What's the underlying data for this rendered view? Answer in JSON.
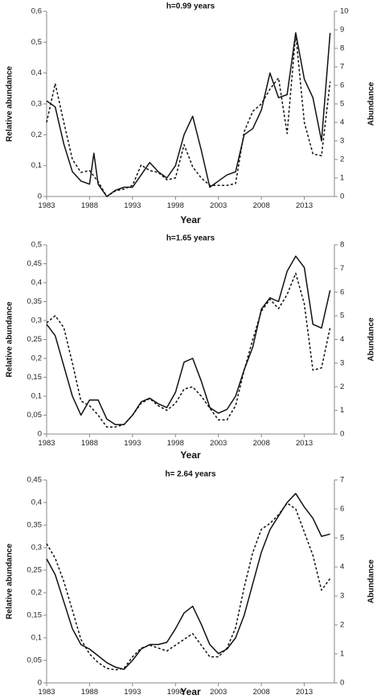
{
  "chart_data": [
    {
      "type": "line",
      "title": "h=0.99 years",
      "xlabel": "Year",
      "ylabel": "Relative abundance",
      "y2label": "Abundance",
      "xticks": [
        "1983",
        "1988",
        "1993",
        "1998",
        "2003",
        "2008",
        "2013"
      ],
      "yticks": [
        "0",
        "0,1",
        "0,2",
        "0,3",
        "0,4",
        "0,5",
        "0,6"
      ],
      "y2ticks": [
        "0",
        "1",
        "2",
        "3",
        "4",
        "5",
        "6",
        "7",
        "8",
        "9",
        "10"
      ],
      "xlim": [
        1983,
        2016.5
      ],
      "ylim": [
        0,
        0.6
      ],
      "y2lim": [
        0,
        10
      ],
      "series": [
        {
          "axis": "left",
          "style": "solid",
          "x": [
            1983,
            1984,
            1985,
            1986,
            1987,
            1988,
            1988.5,
            1989,
            1990,
            1991,
            1992,
            1993,
            1994,
            1995,
            1996,
            1997,
            1998,
            1999,
            2000,
            2001,
            2002,
            2003,
            2004,
            2005,
            2006,
            2007,
            2008,
            2009,
            2010,
            2011,
            2012,
            2013,
            2014,
            2015,
            2016
          ],
          "values": [
            0.31,
            0.29,
            0.17,
            0.08,
            0.05,
            0.04,
            0.14,
            0.04,
            0.0,
            0.02,
            0.03,
            0.03,
            0.07,
            0.11,
            0.08,
            0.06,
            0.1,
            0.2,
            0.26,
            0.15,
            0.03,
            0.05,
            0.07,
            0.08,
            0.2,
            0.22,
            0.28,
            0.4,
            0.32,
            0.33,
            0.53,
            0.38,
            0.32,
            0.18,
            0.53
          ]
        },
        {
          "axis": "right",
          "style": "dashed",
          "x": [
            1983,
            1984,
            1985,
            1986,
            1987,
            1988,
            1989,
            1990,
            1991,
            1992,
            1993,
            1994,
            1995,
            1996,
            1997,
            1998,
            1999,
            2000,
            2001,
            2002,
            2003,
            2004,
            2005,
            2006,
            2007,
            2008,
            2009,
            2010,
            2011,
            2012,
            2013,
            2014,
            2015,
            2016
          ],
          "values": [
            4.0,
            6.1,
            4.0,
            2.0,
            1.3,
            1.4,
            0.8,
            0.0,
            0.3,
            0.4,
            0.6,
            1.7,
            1.4,
            1.3,
            0.9,
            1.0,
            2.8,
            1.6,
            1.0,
            0.6,
            0.6,
            0.6,
            0.7,
            3.5,
            4.6,
            5.0,
            5.8,
            6.4,
            3.4,
            8.8,
            4.0,
            2.3,
            2.2,
            6.2
          ]
        }
      ]
    },
    {
      "type": "line",
      "title": "h=1.65 years",
      "xlabel": "Year",
      "ylabel": "Relative abundance",
      "y2label": "Abundance",
      "xticks": [
        "1983",
        "1988",
        "1993",
        "1998",
        "2003",
        "2008",
        "2013"
      ],
      "yticks": [
        "0",
        "0,05",
        "0,1",
        "0,15",
        "0,2",
        "0,25",
        "0,3",
        "0,35",
        "0,4",
        "0,45",
        "0,5"
      ],
      "y2ticks": [
        "0",
        "1",
        "2",
        "3",
        "4",
        "5",
        "6",
        "7",
        "8"
      ],
      "xlim": [
        1983,
        2016.5
      ],
      "ylim": [
        0,
        0.5
      ],
      "y2lim": [
        0,
        8
      ],
      "series": [
        {
          "axis": "left",
          "style": "solid",
          "x": [
            1983,
            1984,
            1985,
            1986,
            1987,
            1988,
            1989,
            1990,
            1991,
            1992,
            1993,
            1994,
            1995,
            1996,
            1997,
            1998,
            1999,
            2000,
            2001,
            2002,
            2003,
            2004,
            2005,
            2006,
            2007,
            2008,
            2009,
            2010,
            2011,
            2012,
            2013,
            2014,
            2015,
            2016
          ],
          "values": [
            0.29,
            0.26,
            0.18,
            0.1,
            0.05,
            0.09,
            0.09,
            0.04,
            0.025,
            0.025,
            0.05,
            0.085,
            0.095,
            0.08,
            0.07,
            0.11,
            0.19,
            0.2,
            0.14,
            0.07,
            0.055,
            0.065,
            0.1,
            0.17,
            0.23,
            0.33,
            0.36,
            0.35,
            0.43,
            0.47,
            0.44,
            0.29,
            0.28,
            0.38
          ]
        },
        {
          "axis": "right",
          "style": "dashed",
          "x": [
            1983,
            1984,
            1985,
            1986,
            1987,
            1988,
            1989,
            1990,
            1991,
            1992,
            1993,
            1994,
            1995,
            1996,
            1997,
            1998,
            1999,
            2000,
            2001,
            2002,
            2003,
            2004,
            2005,
            2006,
            2007,
            2008,
            2009,
            2010,
            2011,
            2012,
            2013,
            2014,
            2015,
            2016
          ],
          "values": [
            4.7,
            5.0,
            4.5,
            3.0,
            1.4,
            1.2,
            0.8,
            0.3,
            0.3,
            0.4,
            0.8,
            1.3,
            1.5,
            1.2,
            1.0,
            1.3,
            1.9,
            2.0,
            1.6,
            1.1,
            0.6,
            0.6,
            1.2,
            2.7,
            4.0,
            5.2,
            5.7,
            5.3,
            5.9,
            6.8,
            5.5,
            2.7,
            2.8,
            4.5
          ]
        }
      ]
    },
    {
      "type": "line",
      "title": "h= 2.64 years",
      "xlabel": "Year",
      "ylabel": "Relative abundance",
      "y2label": "Abundance",
      "xticks": [
        "1983",
        "1988",
        "1993",
        "1998",
        "2003",
        "2008",
        "2013"
      ],
      "yticks": [
        "0",
        "0,05",
        "0,1",
        "0,15",
        "0,2",
        "0,25",
        "0,3",
        "0,35",
        "0,4",
        "0,45"
      ],
      "y2ticks": [
        "0",
        "1",
        "2",
        "3",
        "4",
        "5",
        "6",
        "7"
      ],
      "xlim": [
        1983,
        2016.5
      ],
      "ylim": [
        0,
        0.45
      ],
      "y2lim": [
        0,
        7
      ],
      "series": [
        {
          "axis": "left",
          "style": "solid",
          "x": [
            1983,
            1984,
            1985,
            1986,
            1987,
            1988,
            1989,
            1990,
            1991,
            1992,
            1993,
            1994,
            1995,
            1996,
            1997,
            1998,
            1999,
            2000,
            2001,
            2002,
            2003,
            2004,
            2005,
            2006,
            2007,
            2008,
            2009,
            2010,
            2011,
            2012,
            2013,
            2014,
            2015,
            2016
          ],
          "values": [
            0.275,
            0.24,
            0.18,
            0.12,
            0.085,
            0.075,
            0.06,
            0.045,
            0.035,
            0.03,
            0.05,
            0.075,
            0.085,
            0.085,
            0.09,
            0.12,
            0.155,
            0.17,
            0.13,
            0.085,
            0.065,
            0.075,
            0.1,
            0.15,
            0.22,
            0.29,
            0.34,
            0.37,
            0.4,
            0.42,
            0.39,
            0.365,
            0.325,
            0.33
          ]
        },
        {
          "axis": "right",
          "style": "dashed",
          "x": [
            1983,
            1984,
            1985,
            1986,
            1987,
            1988,
            1989,
            1990,
            1991,
            1992,
            1993,
            1994,
            1995,
            1996,
            1997,
            1998,
            1999,
            2000,
            2001,
            2002,
            2003,
            2004,
            2005,
            2006,
            2007,
            2008,
            2009,
            2010,
            2011,
            2012,
            2013,
            2014,
            2015,
            2016
          ],
          "values": [
            4.8,
            4.3,
            3.5,
            2.5,
            1.5,
            1.0,
            0.7,
            0.5,
            0.45,
            0.5,
            0.9,
            1.2,
            1.3,
            1.2,
            1.1,
            1.3,
            1.5,
            1.7,
            1.3,
            0.9,
            0.9,
            1.2,
            1.9,
            3.3,
            4.5,
            5.3,
            5.5,
            5.8,
            6.2,
            6.0,
            5.2,
            4.4,
            3.2,
            3.6
          ]
        }
      ]
    }
  ]
}
